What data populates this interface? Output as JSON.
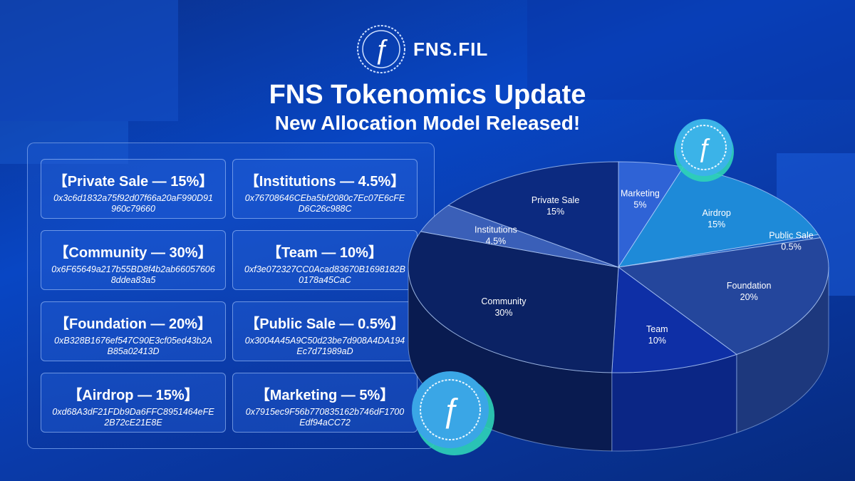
{
  "brand": {
    "name": "FNS.FIL",
    "glyph": "ƒ"
  },
  "title": "FNS Tokenomics Update",
  "subtitle": "New Allocation Model Released!",
  "allocations": [
    {
      "label": "【Private Sale — 15%】",
      "address": "0x3c6d1832a75f92d07f66a20aF990D91960c79660"
    },
    {
      "label": "【Institutions — 4.5%】",
      "address": "0x76708646CEba5bf2080c7Ec07E6cFED6C26c988C"
    },
    {
      "label": "【Community — 30%】",
      "address": "0x6F65649a217b55BD8f4b2ab660576068ddea83a5"
    },
    {
      "label": "【Team — 10%】",
      "address": "0xf3e072327CC0Acad83670B1698182B0178a45CaC"
    },
    {
      "label": "【Foundation — 20%】",
      "address": "0xB328B1676ef547C90E3cf05ed43b2AB85a02413D"
    },
    {
      "label": "【Public Sale — 0.5%】",
      "address": "0x3004A45A9C50d23be7d908A4DA194Ec7d71989aD"
    },
    {
      "label": "【Airdrop — 15%】",
      "address": "0xd68A3dF21FDb9Da6FFC8951464eFE2B72cE21E8E"
    },
    {
      "label": "【Marketing — 5%】",
      "address": "0x7915ec9F56b770835162b746dF1700Edf94aCC72"
    }
  ],
  "chart_data": {
    "type": "pie",
    "categories": [
      "Marketing",
      "Airdrop",
      "Public Sale",
      "Foundation",
      "Team",
      "Community",
      "Institutions",
      "Private Sale"
    ],
    "values": [
      5,
      15,
      0.5,
      20,
      10,
      30,
      4.5,
      15
    ],
    "value_labels": [
      "5%",
      "15%",
      "0.5%",
      "20%",
      "10%",
      "30%",
      "4.5%",
      "15%"
    ],
    "colors": [
      "#2f63d6",
      "#1e8ad8",
      "#1a5bbf",
      "#24469c",
      "#0e2fa6",
      "#0b2264",
      "#3a5fb8",
      "#0c2a80"
    ],
    "style": "3d-pie"
  }
}
